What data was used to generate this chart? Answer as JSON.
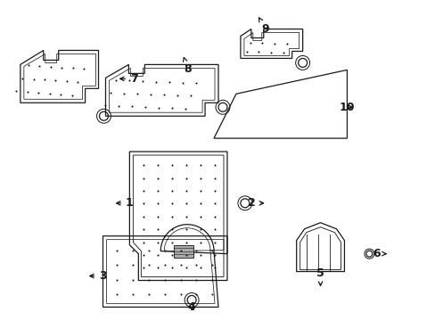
{
  "bg_color": "#ffffff",
  "line_color": "#1a1a1a",
  "figsize": [
    4.89,
    3.6
  ],
  "dpi": 100,
  "lw": 0.9
}
